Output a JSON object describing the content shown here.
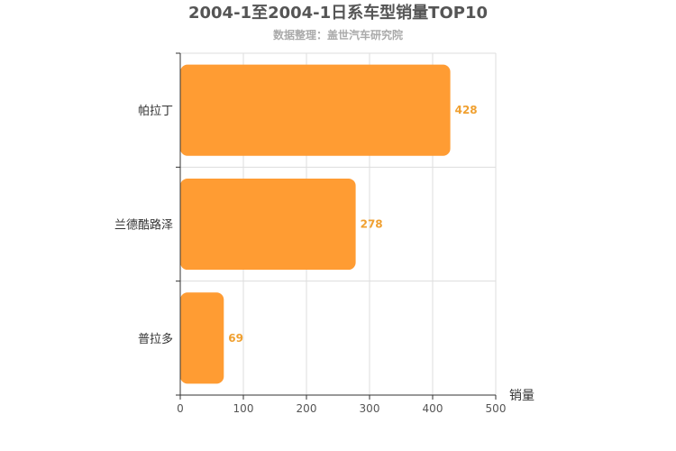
{
  "chart_data": {
    "type": "bar",
    "orientation": "horizontal",
    "title": "2004-1至2004-1日系车型销量TOP10",
    "subtitle": "数据整理：盖世汽车研究院",
    "categories": [
      "帕拉丁",
      "兰德酷路泽",
      "普拉多"
    ],
    "values": [
      428,
      278,
      69
    ],
    "xlabel": "销量",
    "ylabel": "",
    "xlim": [
      0,
      500
    ],
    "xticks": [
      "0",
      "100",
      "200",
      "300",
      "400",
      "500"
    ],
    "grid": true,
    "legend": "none",
    "bar_color": "#ff9c33",
    "label_color": "#f0a030"
  }
}
